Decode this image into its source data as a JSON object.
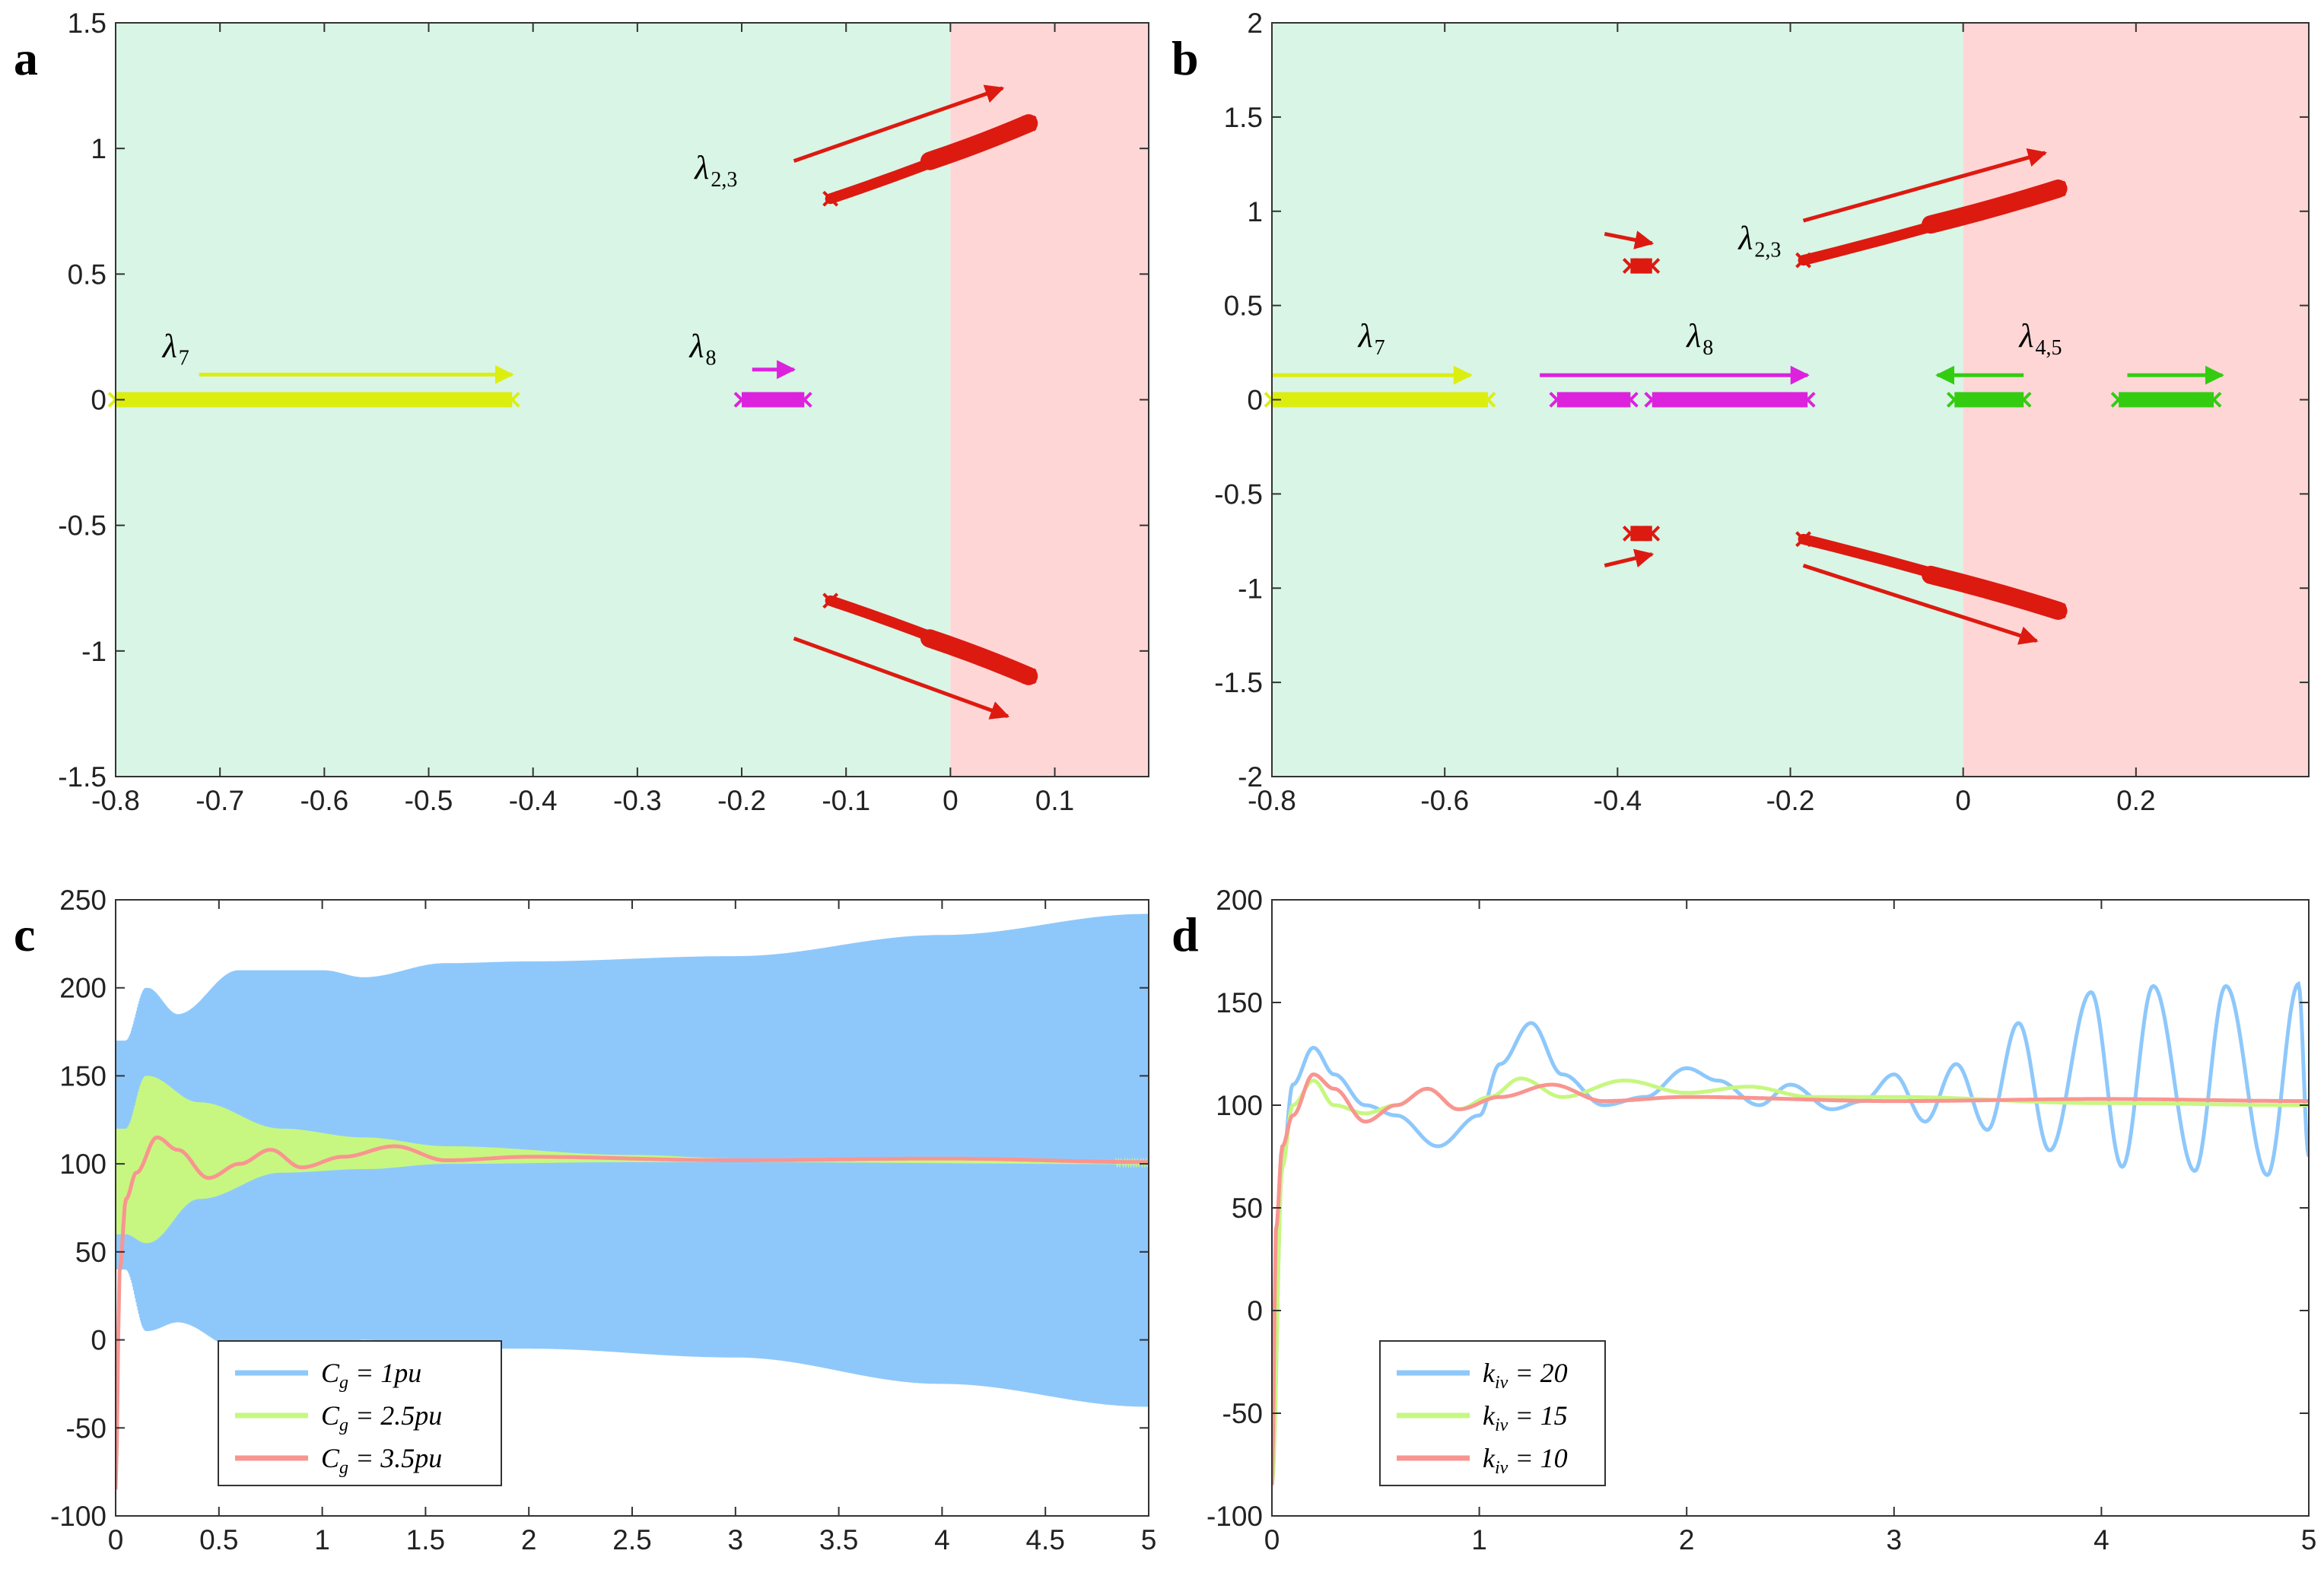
{
  "figure": {
    "panels": [
      "a",
      "b",
      "c",
      "d"
    ]
  },
  "colors": {
    "stable_region": "#d8f5e6",
    "unstable_region": "#ffd6d6",
    "lambda7": "#dcee10",
    "lambda8": "#dd22dd",
    "lambda23": "#dd1a10",
    "lambda45": "#33cc11",
    "line_blue": "#8ec8fb",
    "line_green": "#c7f780",
    "line_red": "#f99590"
  },
  "chart_data": [
    {
      "panel": "a",
      "type": "scatter",
      "title": "",
      "xlabel": "",
      "ylabel": "",
      "xlim": [
        -0.8,
        0.19
      ],
      "ylim": [
        -1.5,
        1.5
      ],
      "xticks": [
        -0.8,
        -0.7,
        -0.6,
        -0.5,
        -0.4,
        -0.3,
        -0.2,
        -0.1,
        0,
        0.1
      ],
      "xtick_labels": [
        "-0.8",
        "-0.7",
        "-0.6",
        "-0.5",
        "-0.4",
        "-0.3",
        "-0.2",
        "-0.1",
        "0",
        "0.1"
      ],
      "yticks": [
        -1.5,
        -1,
        -0.5,
        0,
        0.5,
        1,
        1.5
      ],
      "ytick_labels": [
        "-1.5",
        "-1",
        "-0.5",
        "0",
        "0.5",
        "1",
        "1.5"
      ],
      "regions": [
        {
          "name": "stable",
          "x": [
            -0.8,
            0
          ],
          "color": "#d8f5e6"
        },
        {
          "name": "unstable",
          "x": [
            0,
            0.19
          ],
          "color": "#ffd6d6"
        }
      ],
      "series": [
        {
          "name": "λ7",
          "color": "#dcee10",
          "start": [
            -0.8,
            0
          ],
          "end": [
            -0.42,
            0
          ]
        },
        {
          "name": "λ8",
          "color": "#dd22dd",
          "start": [
            -0.2,
            0
          ],
          "end": [
            -0.14,
            0
          ]
        },
        {
          "name": "λ2,3",
          "color": "#dd1a10",
          "start": [
            -0.115,
            0.8
          ],
          "end": [
            0.075,
            1.1
          ]
        },
        {
          "name": "λ2,3 conj",
          "color": "#dd1a10",
          "start": [
            -0.115,
            -0.8
          ],
          "end": [
            0.075,
            -1.1
          ]
        }
      ],
      "labels": [
        {
          "main": "λ",
          "sub": "7",
          "x": -0.755,
          "y": 0.17
        },
        {
          "main": "λ",
          "sub": "8",
          "x": -0.25,
          "y": 0.17
        },
        {
          "main": "λ",
          "sub": "2,3",
          "x": -0.245,
          "y": 0.88
        }
      ],
      "arrows": [
        {
          "color": "#dcee10",
          "from": [
            -0.72,
            0.1
          ],
          "to": [
            -0.42,
            0.1
          ]
        },
        {
          "color": "#dd22dd",
          "from": [
            -0.19,
            0.12
          ],
          "to": [
            -0.15,
            0.12
          ]
        },
        {
          "color": "#dd1a10",
          "from": [
            -0.15,
            0.95
          ],
          "to": [
            0.05,
            1.24
          ]
        },
        {
          "color": "#dd1a10",
          "from": [
            -0.15,
            -0.95
          ],
          "to": [
            0.055,
            -1.26
          ]
        }
      ]
    },
    {
      "panel": "b",
      "type": "scatter",
      "title": "",
      "xlabel": "",
      "ylabel": "",
      "xlim": [
        -0.8,
        0.4
      ],
      "ylim": [
        -2,
        2
      ],
      "xticks": [
        -0.8,
        -0.6,
        -0.4,
        -0.2,
        0,
        0.2
      ],
      "xtick_labels": [
        "-0.8",
        "-0.6",
        "-0.4",
        "-0.2",
        "0",
        "0.2"
      ],
      "yticks": [
        -2,
        -1.5,
        -1,
        -0.5,
        0,
        0.5,
        1,
        1.5,
        2
      ],
      "ytick_labels": [
        "-2",
        "-1.5",
        "-1",
        "-0.5",
        "0",
        "0.5",
        "1",
        "1.5",
        "2"
      ],
      "regions": [
        {
          "name": "stable",
          "x": [
            -0.8,
            0
          ],
          "color": "#d8f5e6"
        },
        {
          "name": "unstable",
          "x": [
            0,
            0.4
          ],
          "color": "#ffd6d6"
        }
      ],
      "series": [
        {
          "name": "λ7",
          "color": "#dcee10",
          "start": [
            -0.8,
            0
          ],
          "end": [
            -0.55,
            0
          ]
        },
        {
          "name": "λ8",
          "color": "#dd22dd",
          "start": [
            -0.47,
            0
          ],
          "end": [
            -0.385,
            0
          ]
        },
        {
          "name": "λ8 b",
          "color": "#dd22dd",
          "start": [
            -0.36,
            0
          ],
          "end": [
            -0.18,
            0
          ]
        },
        {
          "name": "λ2,3",
          "color": "#dd1a10",
          "start": [
            -0.185,
            0.74
          ],
          "end": [
            0.11,
            1.12
          ]
        },
        {
          "name": "λ2,3 conj",
          "color": "#dd1a10",
          "start": [
            -0.185,
            -0.74
          ],
          "end": [
            0.11,
            -1.12
          ]
        },
        {
          "name": "λ2,3 small",
          "color": "#dd1a10",
          "start": [
            -0.385,
            0.71
          ],
          "end": [
            -0.36,
            0.71
          ]
        },
        {
          "name": "λ2,3 small conj",
          "color": "#dd1a10",
          "start": [
            -0.385,
            -0.71
          ],
          "end": [
            -0.36,
            -0.71
          ]
        },
        {
          "name": "λ4,5",
          "color": "#33cc11",
          "start": [
            -0.01,
            0
          ],
          "end": [
            0.07,
            0
          ]
        },
        {
          "name": "λ4,5 b",
          "color": "#33cc11",
          "start": [
            0.18,
            0
          ],
          "end": [
            0.29,
            0
          ]
        }
      ],
      "labels": [
        {
          "main": "λ",
          "sub": "7",
          "x": -0.7,
          "y": 0.28
        },
        {
          "main": "λ",
          "sub": "8",
          "x": -0.32,
          "y": 0.28
        },
        {
          "main": "λ",
          "sub": "2,3",
          "x": -0.26,
          "y": 0.8
        },
        {
          "main": "λ",
          "sub": "4,5",
          "x": 0.065,
          "y": 0.28
        }
      ],
      "arrows": [
        {
          "color": "#dcee10",
          "from": [
            -0.8,
            0.13
          ],
          "to": [
            -0.57,
            0.13
          ]
        },
        {
          "color": "#dd22dd",
          "from": [
            -0.49,
            0.13
          ],
          "to": [
            -0.18,
            0.13
          ]
        },
        {
          "color": "#33cc11",
          "from": [
            0.07,
            0.13
          ],
          "to": [
            -0.03,
            0.13
          ]
        },
        {
          "color": "#33cc11",
          "from": [
            0.19,
            0.13
          ],
          "to": [
            0.3,
            0.13
          ]
        },
        {
          "color": "#dd1a10",
          "from": [
            -0.415,
            0.88
          ],
          "to": [
            -0.36,
            0.83
          ]
        },
        {
          "color": "#dd1a10",
          "from": [
            -0.415,
            -0.88
          ],
          "to": [
            -0.36,
            -0.82
          ]
        },
        {
          "color": "#dd1a10",
          "from": [
            -0.185,
            0.95
          ],
          "to": [
            0.095,
            1.31
          ]
        },
        {
          "color": "#dd1a10",
          "from": [
            -0.185,
            -0.88
          ],
          "to": [
            0.085,
            -1.28
          ]
        }
      ]
    },
    {
      "panel": "c",
      "type": "line",
      "title": "",
      "xlabel": "",
      "ylabel": "",
      "xlim": [
        0,
        5
      ],
      "ylim": [
        -100,
        250
      ],
      "xticks": [
        0,
        0.5,
        1,
        1.5,
        2,
        2.5,
        3,
        3.5,
        4,
        4.5,
        5
      ],
      "xtick_labels": [
        "0",
        "0.5",
        "1",
        "1.5",
        "2",
        "2.5",
        "3",
        "3.5",
        "4",
        "4.5",
        "5"
      ],
      "yticks": [
        -100,
        -50,
        0,
        50,
        100,
        150,
        200,
        250
      ],
      "ytick_labels": [
        "-100",
        "-50",
        "0",
        "50",
        "100",
        "150",
        "200",
        "250"
      ],
      "series": [
        {
          "name": "Cg = 1pu",
          "legend_main": "C",
          "legend_sub": "g",
          "legend_rest": " = 1pu",
          "color": "#8ec8fb",
          "envelope_upper": [
            [
              0.05,
              170
            ],
            [
              0.15,
              200
            ],
            [
              0.3,
              185
            ],
            [
              0.6,
              210
            ],
            [
              1.0,
              210
            ],
            [
              1.2,
              206
            ],
            [
              1.6,
              214
            ],
            [
              2.0,
              215
            ],
            [
              3.0,
              218
            ],
            [
              4.0,
              230
            ],
            [
              5.0,
              242
            ]
          ],
          "envelope_lower": [
            [
              0.05,
              40
            ],
            [
              0.15,
              5
            ],
            [
              0.3,
              10
            ],
            [
              0.6,
              -5
            ],
            [
              1.0,
              -5
            ],
            [
              1.2,
              0
            ],
            [
              1.6,
              -5
            ],
            [
              2.0,
              -5
            ],
            [
              3.0,
              -10
            ],
            [
              4.0,
              -25
            ],
            [
              5.0,
              -38
            ]
          ]
        },
        {
          "name": "Cg = 2.5pu",
          "legend_main": "C",
          "legend_sub": "g",
          "legend_rest": " = 2.5pu",
          "color": "#c7f780",
          "envelope_upper": [
            [
              0.05,
              120
            ],
            [
              0.15,
              150
            ],
            [
              0.4,
              135
            ],
            [
              0.8,
              120
            ],
            [
              1.2,
              115
            ],
            [
              1.6,
              110
            ],
            [
              2.5,
              105
            ],
            [
              3.0,
              103
            ],
            [
              5.0,
              101
            ]
          ],
          "envelope_lower": [
            [
              0.05,
              60
            ],
            [
              0.15,
              55
            ],
            [
              0.4,
              80
            ],
            [
              0.8,
              95
            ],
            [
              1.2,
              97
            ],
            [
              1.6,
              100
            ],
            [
              2.5,
              101
            ],
            [
              3.0,
              101
            ],
            [
              5.0,
              100
            ]
          ]
        },
        {
          "name": "Cg = 3.5pu",
          "legend_main": "C",
          "legend_sub": "g",
          "legend_rest": " = 3.5pu",
          "color": "#f99590",
          "y": [
            [
              0,
              -85
            ],
            [
              0.02,
              40
            ],
            [
              0.05,
              80
            ],
            [
              0.1,
              95
            ],
            [
              0.2,
              115
            ],
            [
              0.3,
              108
            ],
            [
              0.45,
              92
            ],
            [
              0.6,
              100
            ],
            [
              0.75,
              108
            ],
            [
              0.9,
              98
            ],
            [
              1.1,
              104
            ],
            [
              1.35,
              110
            ],
            [
              1.6,
              102
            ],
            [
              2.0,
              104
            ],
            [
              3.0,
              102
            ],
            [
              4.0,
              103
            ],
            [
              5.0,
              101
            ]
          ]
        }
      ],
      "legend": {
        "placement": "lower-left"
      }
    },
    {
      "panel": "d",
      "type": "line",
      "title": "",
      "xlabel": "",
      "ylabel": "",
      "xlim": [
        0,
        5
      ],
      "ylim": [
        -100,
        200
      ],
      "xticks": [
        0,
        1,
        2,
        3,
        4,
        5
      ],
      "xtick_labels": [
        "0",
        "1",
        "2",
        "3",
        "4",
        "5"
      ],
      "yticks": [
        -100,
        -50,
        0,
        50,
        100,
        150,
        200
      ],
      "ytick_labels": [
        "-100",
        "-50",
        "0",
        "50",
        "100",
        "150",
        "200"
      ],
      "series": [
        {
          "name": "kiv = 20",
          "legend_main": "k",
          "legend_sub": "iv",
          "legend_rest": " = 20",
          "color": "#8ec8fb",
          "y": [
            [
              0,
              -85
            ],
            [
              0.05,
              70
            ],
            [
              0.1,
              110
            ],
            [
              0.2,
              128
            ],
            [
              0.3,
              115
            ],
            [
              0.45,
              100
            ],
            [
              0.6,
              95
            ],
            [
              0.8,
              80
            ],
            [
              1.0,
              95
            ],
            [
              1.1,
              120
            ],
            [
              1.25,
              140
            ],
            [
              1.4,
              115
            ],
            [
              1.6,
              100
            ],
            [
              1.8,
              104
            ],
            [
              2.0,
              118
            ],
            [
              2.15,
              112
            ],
            [
              2.35,
              100
            ],
            [
              2.5,
              110
            ],
            [
              2.7,
              98
            ],
            [
              2.85,
              102
            ],
            [
              3.0,
              115
            ],
            [
              3.15,
              92
            ],
            [
              3.3,
              120
            ],
            [
              3.45,
              88
            ],
            [
              3.6,
              140
            ],
            [
              3.75,
              78
            ],
            [
              3.95,
              155
            ],
            [
              4.1,
              70
            ],
            [
              4.25,
              158
            ],
            [
              4.45,
              68
            ],
            [
              4.6,
              158
            ],
            [
              4.8,
              66
            ],
            [
              4.95,
              159
            ],
            [
              5.0,
              75
            ]
          ]
        },
        {
          "name": "kiv = 15",
          "legend_main": "k",
          "legend_sub": "iv",
          "legend_rest": " = 15",
          "color": "#c7f780",
          "y": [
            [
              0,
              -85
            ],
            [
              0.05,
              70
            ],
            [
              0.1,
              100
            ],
            [
              0.2,
              112
            ],
            [
              0.3,
              100
            ],
            [
              0.45,
              96
            ],
            [
              0.6,
              100
            ],
            [
              0.75,
              108
            ],
            [
              0.9,
              98
            ],
            [
              1.05,
              104
            ],
            [
              1.2,
              113
            ],
            [
              1.4,
              104
            ],
            [
              1.7,
              112
            ],
            [
              2.0,
              106
            ],
            [
              2.3,
              109
            ],
            [
              2.6,
              104
            ],
            [
              3.0,
              104
            ],
            [
              4.0,
              101
            ],
            [
              5.0,
              100
            ]
          ]
        },
        {
          "name": "kiv = 10",
          "legend_main": "k",
          "legend_sub": "iv",
          "legend_rest": " = 10",
          "color": "#f99590",
          "y": [
            [
              0,
              -85
            ],
            [
              0.02,
              40
            ],
            [
              0.05,
              80
            ],
            [
              0.1,
              95
            ],
            [
              0.2,
              115
            ],
            [
              0.3,
              108
            ],
            [
              0.45,
              92
            ],
            [
              0.6,
              100
            ],
            [
              0.75,
              108
            ],
            [
              0.9,
              98
            ],
            [
              1.1,
              104
            ],
            [
              1.35,
              110
            ],
            [
              1.6,
              102
            ],
            [
              2.0,
              104
            ],
            [
              3.0,
              102
            ],
            [
              4.0,
              103
            ],
            [
              5.0,
              102
            ]
          ]
        }
      ],
      "legend": {
        "placement": "lower-left"
      }
    }
  ]
}
